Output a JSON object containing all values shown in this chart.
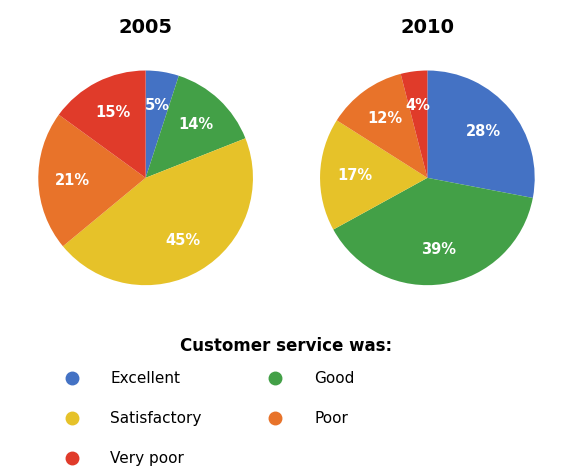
{
  "title_2005": "2005",
  "title_2010": "2010",
  "colors": {
    "Excellent": "#4472C4",
    "Good": "#43A047",
    "Satisfactory": "#E6C229",
    "Poor": "#E8732A",
    "Very poor": "#E03B2A"
  },
  "values_2005": [
    5,
    14,
    45,
    21,
    15
  ],
  "values_2010": [
    28,
    39,
    17,
    12,
    4
  ],
  "order_2005": [
    "Excellent",
    "Good",
    "Satisfactory",
    "Poor",
    "Very poor"
  ],
  "order_2010": [
    "Excellent",
    "Good",
    "Satisfactory",
    "Poor",
    "Very poor"
  ],
  "legend_title": "Customer service was:",
  "legend_col1": [
    "Excellent",
    "Satisfactory",
    "Very poor"
  ],
  "legend_col2": [
    "Good",
    "Poor"
  ],
  "background_color": "#ffffff",
  "startangle_2005": 90,
  "startangle_2010": 90
}
